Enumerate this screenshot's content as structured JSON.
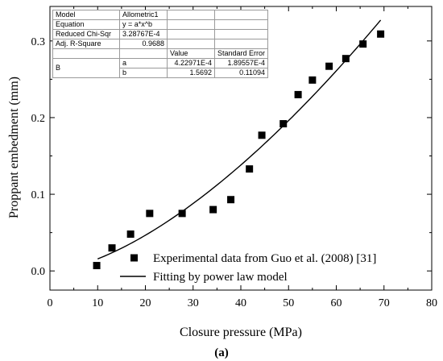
{
  "chart_data": {
    "type": "scatter",
    "xlabel": "Closure pressure (MPa)",
    "ylabel": "Proppant embedment (mm)",
    "caption": "(a)",
    "xlim": [
      0,
      80
    ],
    "ylim": [
      -0.025,
      0.345
    ],
    "xticks": [
      0,
      10,
      20,
      30,
      40,
      50,
      60,
      70,
      80
    ],
    "yticks": [
      0.0,
      0.1,
      0.2,
      0.3
    ],
    "xtick_labels": [
      "0",
      "10",
      "20",
      "30",
      "40",
      "50",
      "60",
      "70",
      "80"
    ],
    "ytick_labels": [
      "0.0",
      "0.1",
      "0.2",
      "0.3"
    ],
    "series": [
      {
        "name": "Experimental data from Guo et al. (2008) [31]",
        "marker": "square",
        "color": "#000000",
        "x": [
          9.8,
          13.0,
          16.9,
          20.9,
          27.7,
          34.2,
          37.9,
          41.8,
          44.4,
          48.9,
          52.0,
          55.0,
          58.5,
          62.0,
          65.6,
          69.3
        ],
        "y": [
          0.007,
          0.03,
          0.048,
          0.075,
          0.075,
          0.08,
          0.093,
          0.133,
          0.177,
          0.192,
          0.23,
          0.249,
          0.267,
          0.277,
          0.296,
          0.309
        ]
      },
      {
        "name": "Fitting by power law model",
        "kind": "line",
        "color": "#000000",
        "model": {
          "a": 0.000422971,
          "b": 1.5692
        },
        "x_range": [
          10,
          69.3
        ]
      }
    ],
    "legend_position": "bottom-right",
    "fit_table": {
      "rows": [
        [
          "Model",
          "Allometric1",
          "",
          ""
        ],
        [
          "Equation",
          "y = a*x^b",
          "",
          ""
        ],
        [
          "Reduced Chi-Sqr",
          "3.28767E-4",
          "",
          ""
        ],
        [
          "Adj. R-Square",
          "0.9688",
          "",
          ""
        ],
        [
          "",
          "",
          "Value",
          "Standard Error"
        ]
      ],
      "param_label": "B",
      "params": [
        [
          "a",
          "4.22971E-4",
          "1.89557E-4"
        ],
        [
          "b",
          "1.5692",
          "0.11094"
        ]
      ]
    }
  }
}
